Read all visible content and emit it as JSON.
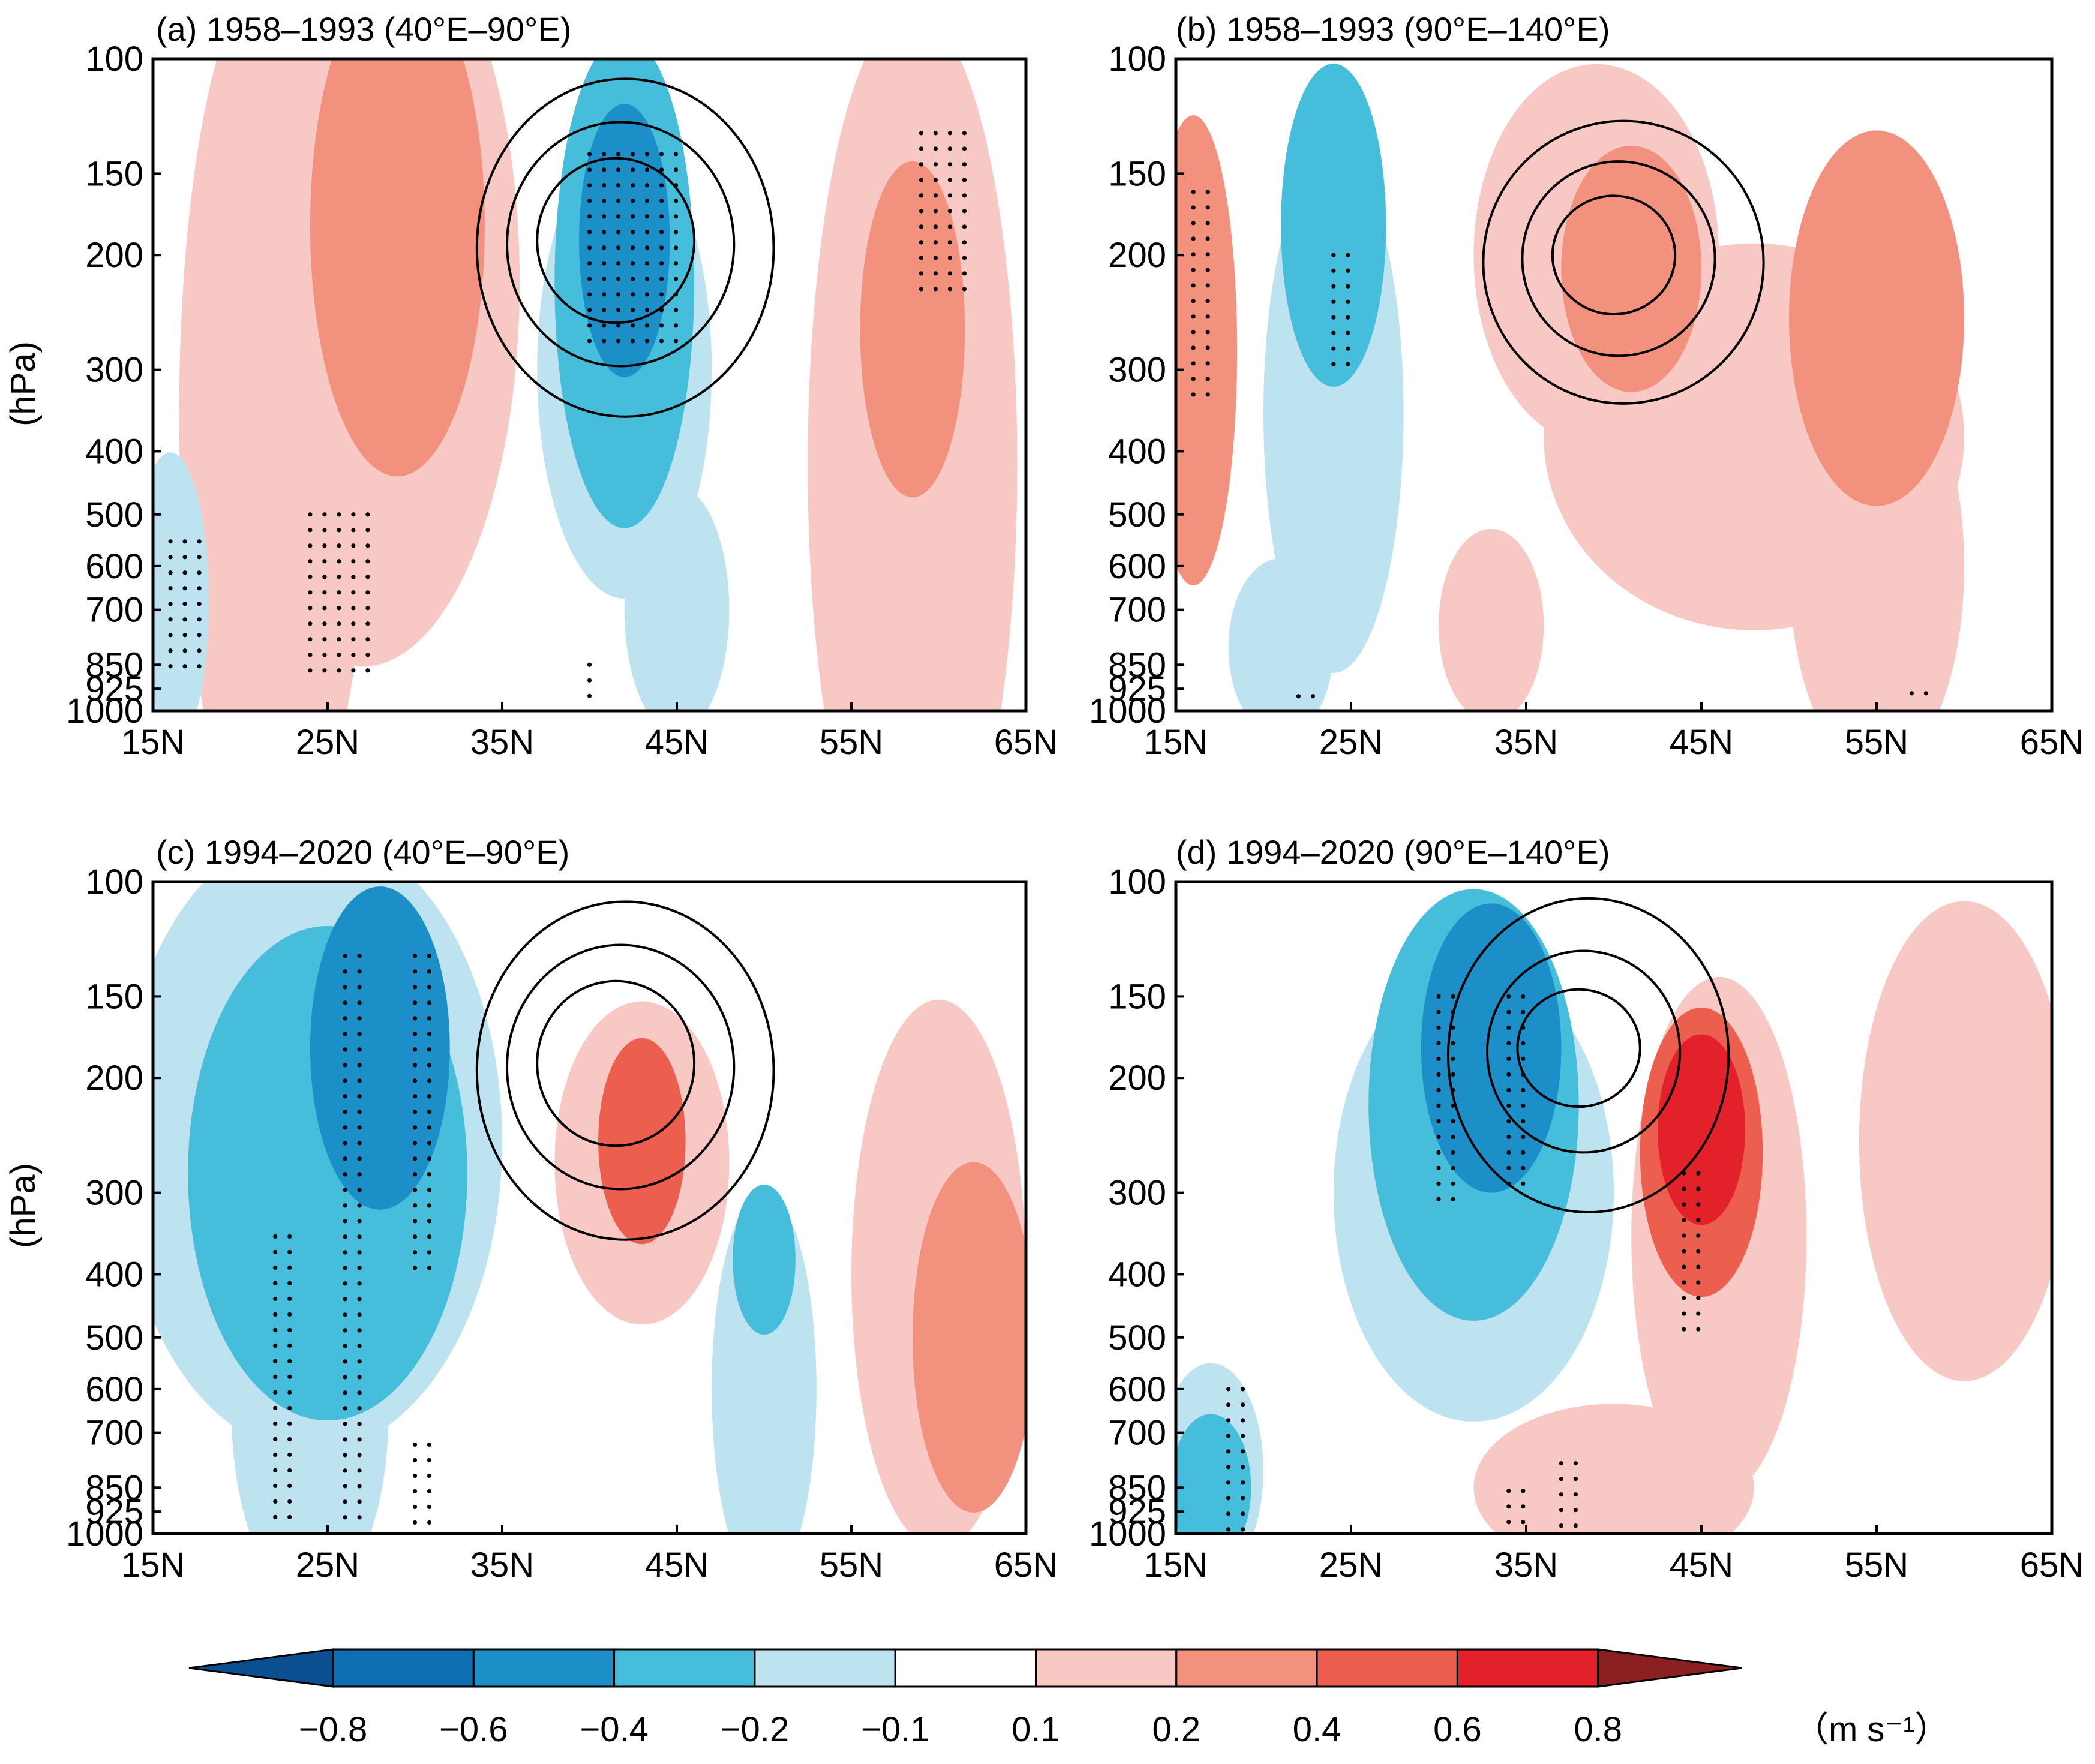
{
  "chart_data": {
    "type": "contour",
    "ylabel": "(hPa)",
    "x_ticks": [
      "15N",
      "25N",
      "35N",
      "45N",
      "55N",
      "65N"
    ],
    "x_values": [
      15,
      25,
      35,
      45,
      55,
      65
    ],
    "y_ticks": [
      "100",
      "150",
      "200",
      "300",
      "400",
      "500",
      "600",
      "700",
      "850",
      "925",
      "1000"
    ],
    "y_values": [
      100,
      150,
      200,
      300,
      400,
      500,
      600,
      700,
      850,
      925,
      1000
    ],
    "xlim": [
      15,
      65
    ],
    "ylim": [
      100,
      1000
    ],
    "colorbar": {
      "labels": [
        "−0.8",
        "−0.6",
        "−0.4",
        "−0.2",
        "−0.1",
        "0.1",
        "0.2",
        "0.4",
        "0.6",
        "0.8"
      ],
      "levels": [
        -0.8,
        -0.6,
        -0.4,
        -0.2,
        -0.1,
        0.1,
        0.2,
        0.4,
        0.6,
        0.8
      ],
      "colors": [
        "#0a4f8f",
        "#0f6fb3",
        "#1c8fc9",
        "#46bddb",
        "#bde3f0",
        "#ffffff",
        "#f8c8c5",
        "#f2917d",
        "#ec5f4f",
        "#e2212a",
        "#8c1f1f"
      ],
      "unit": "（m s⁻¹）"
    },
    "panels": [
      {
        "id": "a",
        "title": "(a) 1958–1993 (40°E–90°E)",
        "blobs": [
          {
            "lat": 22,
            "p": 350,
            "rx": 5.5,
            "rp": 460,
            "v": 0.15
          },
          {
            "lat": 27,
            "p": 220,
            "rx": 9,
            "rp": 260,
            "v": 0.15
          },
          {
            "lat": 27,
            "p": 470,
            "rx": 2.8,
            "rp": 180,
            "v": 0.15
          },
          {
            "lat": 29,
            "p": 180,
            "rx": 5,
            "rp": 150,
            "v": 0.3
          },
          {
            "lat": 58.5,
            "p": 420,
            "rx": 6,
            "rp": 560,
            "v": 0.15
          },
          {
            "lat": 58.5,
            "p": 350,
            "rx": 4.5,
            "rp": 380,
            "v": 0.15
          },
          {
            "lat": 58.5,
            "p": 260,
            "rx": 3,
            "rp": 150,
            "v": 0.3
          },
          {
            "lat": 42,
            "p": 300,
            "rx": 5,
            "rp": 230,
            "v": -0.12
          },
          {
            "lat": 45,
            "p": 700,
            "rx": 3,
            "rp": 300,
            "v": -0.12
          },
          {
            "lat": 42,
            "p": 220,
            "rx": 4,
            "rp": 180,
            "v": -0.3
          },
          {
            "lat": 42,
            "p": 190,
            "rx": 2.6,
            "rp": 90,
            "v": -0.45
          },
          {
            "lat": 16,
            "p": 680,
            "rx": 2.2,
            "rp": 350,
            "v": -0.12
          }
        ],
        "jet": {
          "lat": 41.5,
          "p": 190,
          "rx": [
            4.5,
            6.5,
            8.5
          ],
          "rp": [
            60,
            90,
            125
          ]
        },
        "stipple": [
          [
            24,
            500,
            28,
            900
          ],
          [
            16,
            550,
            18,
            870
          ],
          [
            59,
            130,
            62,
            230
          ],
          [
            40,
            140,
            45,
            280
          ],
          [
            40,
            850,
            40,
            990
          ]
        ]
      },
      {
        "id": "b",
        "title": "(b) 1958–1993 (90°E–140°E)",
        "blobs": [
          {
            "lat": 39,
            "p": 200,
            "rx": 7,
            "rp": 130,
            "v": 0.15
          },
          {
            "lat": 48,
            "p": 380,
            "rx": 12,
            "rp": 250,
            "v": 0.12
          },
          {
            "lat": 33,
            "p": 740,
            "rx": 3,
            "rp": 250,
            "v": 0.12
          },
          {
            "lat": 55,
            "p": 600,
            "rx": 5,
            "rp": 420,
            "v": 0.12
          },
          {
            "lat": 41,
            "p": 210,
            "rx": 4,
            "rp": 90,
            "v": 0.28
          },
          {
            "lat": 55,
            "p": 250,
            "rx": 5,
            "rp": 160,
            "v": 0.28
          },
          {
            "lat": 16,
            "p": 280,
            "rx": 2.5,
            "rp": 220,
            "v": 0.2
          },
          {
            "lat": 24,
            "p": 350,
            "rx": 4,
            "rp": 300,
            "v": -0.12
          },
          {
            "lat": 21,
            "p": 800,
            "rx": 3,
            "rp": 250,
            "v": -0.12
          },
          {
            "lat": 24,
            "p": 180,
            "rx": 3,
            "rp": 100,
            "v": -0.3
          }
        ],
        "jet": {
          "lat": 40,
          "p": 200,
          "rx": [
            3.5,
            5.5,
            8.0
          ],
          "rp": [
            45,
            75,
            110
          ]
        },
        "stipple": [
          [
            16,
            160,
            17,
            340
          ],
          [
            24,
            200,
            25,
            300
          ],
          [
            22,
            950,
            23,
            990
          ],
          [
            57,
            940,
            58,
            990
          ]
        ]
      },
      {
        "id": "c",
        "title": "(c) 1994–2020 (40°E–90°E)",
        "blobs": [
          {
            "lat": 24,
            "p": 250,
            "rx": 11,
            "rp": 250,
            "v": -0.15
          },
          {
            "lat": 24,
            "p": 650,
            "rx": 4.5,
            "rp": 420,
            "v": -0.15
          },
          {
            "lat": 25,
            "p": 280,
            "rx": 8,
            "rp": 230,
            "v": -0.3
          },
          {
            "lat": 28,
            "p": 180,
            "rx": 4,
            "rp": 100,
            "v": -0.45
          },
          {
            "lat": 50,
            "p": 600,
            "rx": 3,
            "rp": 400,
            "v": -0.12
          },
          {
            "lat": 50,
            "p": 380,
            "rx": 1.8,
            "rp": 100,
            "v": -0.3
          },
          {
            "lat": 43,
            "p": 270,
            "rx": 5,
            "rp": 150,
            "v": 0.15
          },
          {
            "lat": 43,
            "p": 250,
            "rx": 2.5,
            "rp": 90,
            "v": 0.45
          },
          {
            "lat": 60,
            "p": 400,
            "rx": 5,
            "rp": 360,
            "v": 0.15
          },
          {
            "lat": 62,
            "p": 500,
            "rx": 3.5,
            "rp": 300,
            "v": 0.3
          }
        ],
        "jet": {
          "lat": 41.5,
          "p": 190,
          "rx": [
            4.5,
            6.5,
            8.5
          ],
          "rp": [
            60,
            90,
            125
          ]
        },
        "stipple": [
          [
            22,
            350,
            23,
            990
          ],
          [
            26,
            130,
            27,
            990
          ],
          [
            30,
            130,
            31,
            400
          ],
          [
            30,
            730,
            31,
            990
          ]
        ]
      },
      {
        "id": "d",
        "title": "(d) 1994–2020 (90°E–140°E)",
        "blobs": [
          {
            "lat": 32,
            "p": 300,
            "rx": 8,
            "rp": 230,
            "v": -0.15
          },
          {
            "lat": 32,
            "p": 220,
            "rx": 6,
            "rp": 160,
            "v": -0.3
          },
          {
            "lat": 33,
            "p": 180,
            "rx": 4,
            "rp": 90,
            "v": -0.5
          },
          {
            "lat": 17,
            "p": 800,
            "rx": 3,
            "rp": 300,
            "v": -0.15
          },
          {
            "lat": 17,
            "p": 850,
            "rx": 2.3,
            "rp": 220,
            "v": -0.3
          },
          {
            "lat": 46,
            "p": 350,
            "rx": 5,
            "rp": 300,
            "v": 0.15
          },
          {
            "lat": 45,
            "p": 260,
            "rx": 3.5,
            "rp": 130,
            "v": 0.45
          },
          {
            "lat": 45,
            "p": 240,
            "rx": 2.5,
            "rp": 80,
            "v": 0.65
          },
          {
            "lat": 40,
            "p": 850,
            "rx": 8,
            "rp": 250,
            "v": 0.12
          },
          {
            "lat": 60,
            "p": 250,
            "rx": 6,
            "rp": 200,
            "v": 0.15
          }
        ],
        "jet": {
          "lat": 38,
          "p": 180,
          "rx": [
            3.5,
            5.5,
            8.0
          ],
          "rp": [
            40,
            70,
            110
          ]
        },
        "stipple": [
          [
            30,
            150,
            31,
            320
          ],
          [
            34,
            150,
            35,
            300
          ],
          [
            18,
            600,
            19,
            990
          ],
          [
            44,
            280,
            45,
            500
          ],
          [
            34,
            860,
            35,
            990
          ],
          [
            37,
            780,
            38,
            990
          ]
        ]
      }
    ]
  }
}
